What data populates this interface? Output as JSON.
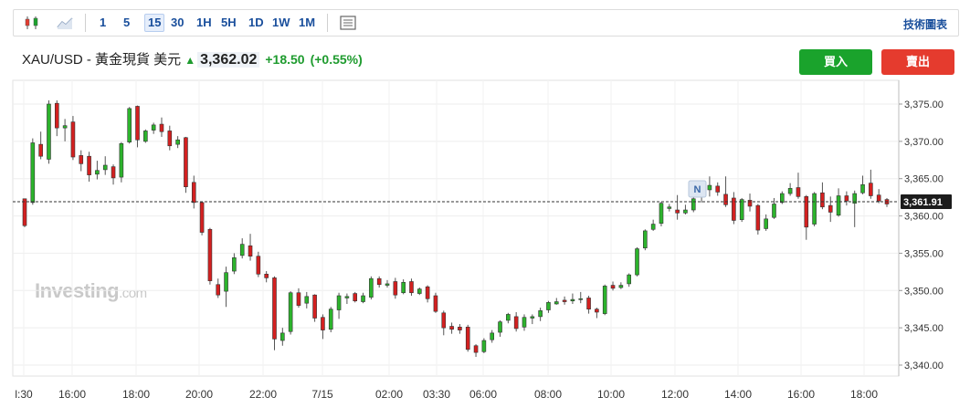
{
  "toolbar": {
    "intervals": [
      "1",
      "5",
      "15",
      "30",
      "1H",
      "5H",
      "1D",
      "1W",
      "1M"
    ],
    "active_interval": "15",
    "right_label": "技術圖表"
  },
  "quote": {
    "name": "XAU/USD - 黃金現貨 美元",
    "direction_icon": "up-arrow-icon",
    "price": "3,362.02",
    "change": "+18.50",
    "change_pct": "(+0.55%)",
    "color_up": "#1e9b2e"
  },
  "buttons": {
    "buy": "買入",
    "sell": "賣出",
    "buy_color": "#1aa32c",
    "sell_color": "#e53b2e"
  },
  "watermark": {
    "brand": "Investing",
    "suffix": ".com"
  },
  "chart_data": {
    "type": "candlestick",
    "x_tick_labels": [
      "l:30",
      "16:00",
      "18:00",
      "20:00",
      "22:00",
      "7/15",
      "02:00",
      "03:30",
      "06:00",
      "08:00",
      "10:00",
      "12:00",
      "14:00",
      "16:00",
      "18:00"
    ],
    "y_tick_labels": [
      "3,375.00",
      "3,370.00",
      "3,365.00",
      "3,360.00",
      "3,355.00",
      "3,350.00",
      "3,345.00",
      "3,340.00"
    ],
    "y_ticks": [
      3375,
      3370,
      3365,
      3360,
      3355,
      3350,
      3345,
      3340
    ],
    "ylim": [
      3338.6,
      3378.5
    ],
    "current_price": 3361.91,
    "current_price_label": "3,361.91",
    "marker_label": "N",
    "up_color": "#2cb32c",
    "down_color": "#d32020",
    "candles": [
      [
        3362.3,
        3358.7,
        3361.9,
        3358.5
      ],
      [
        3361.8,
        3369.8,
        3370.4,
        3361.5
      ],
      [
        3369.6,
        3368.0,
        3371.3,
        3367.6
      ],
      [
        3367.6,
        3375.0,
        3375.5,
        3367.0
      ],
      [
        3375.1,
        3371.8,
        3375.5,
        3370.7
      ],
      [
        3371.8,
        3372.1,
        3373.0,
        3370.0
      ],
      [
        3372.6,
        3367.9,
        3373.4,
        3367.5
      ],
      [
        3368.1,
        3367.0,
        3368.8,
        3366.0
      ],
      [
        3368.0,
        3365.5,
        3368.6,
        3364.6
      ],
      [
        3365.6,
        3366.1,
        3367.4,
        3364.9
      ],
      [
        3366.2,
        3366.8,
        3368.0,
        3365.5
      ],
      [
        3366.6,
        3365.1,
        3366.9,
        3364.2
      ],
      [
        3365.2,
        3369.7,
        3369.9,
        3364.5
      ],
      [
        3369.9,
        3374.4,
        3374.6,
        3369.7
      ],
      [
        3374.7,
        3370.2,
        3374.8,
        3369.2
      ],
      [
        3370.0,
        3371.4,
        3371.6,
        3369.8
      ],
      [
        3371.5,
        3372.2,
        3372.5,
        3371.0
      ],
      [
        3372.3,
        3371.3,
        3373.2,
        3370.6
      ],
      [
        3371.4,
        3369.4,
        3372.1,
        3368.8
      ],
      [
        3369.6,
        3370.2,
        3370.7,
        3369.1
      ],
      [
        3370.5,
        3363.9,
        3370.6,
        3363.1
      ],
      [
        3364.5,
        3361.8,
        3365.4,
        3361.0
      ],
      [
        3361.8,
        3357.8,
        3361.8,
        3357.4
      ],
      [
        3358.2,
        3351.3,
        3358.4,
        3350.8
      ],
      [
        3350.8,
        3349.4,
        3351.6,
        3349.0
      ],
      [
        3349.9,
        3352.4,
        3353.2,
        3347.8
      ],
      [
        3352.6,
        3354.4,
        3355.0,
        3352.2
      ],
      [
        3354.7,
        3356.2,
        3357.0,
        3354.3
      ],
      [
        3356.0,
        3354.6,
        3357.6,
        3354.0
      ],
      [
        3354.6,
        3352.2,
        3355.2,
        3351.8
      ],
      [
        3352.2,
        3351.7,
        3352.6,
        3351.1
      ],
      [
        3351.7,
        3343.5,
        3351.9,
        3342.0
      ],
      [
        3343.3,
        3344.3,
        3345.0,
        3342.6
      ],
      [
        3344.5,
        3349.7,
        3349.9,
        3344.1
      ],
      [
        3349.7,
        3348.0,
        3350.3,
        3347.7
      ],
      [
        3348.3,
        3349.2,
        3349.8,
        3347.6
      ],
      [
        3349.4,
        3346.3,
        3349.5,
        3345.8
      ],
      [
        3346.4,
        3344.7,
        3346.8,
        3343.5
      ],
      [
        3344.8,
        3347.5,
        3347.8,
        3344.4
      ],
      [
        3347.4,
        3349.3,
        3349.7,
        3346.2
      ],
      [
        3349.0,
        3349.2,
        3349.6,
        3348.2
      ],
      [
        3349.6,
        3348.6,
        3349.8,
        3348.4
      ],
      [
        3348.5,
        3349.3,
        3349.7,
        3348.3
      ],
      [
        3349.1,
        3351.6,
        3351.9,
        3348.8
      ],
      [
        3351.6,
        3350.8,
        3351.9,
        3350.4
      ],
      [
        3350.7,
        3350.9,
        3351.4,
        3350.4
      ],
      [
        3351.2,
        3349.4,
        3351.7,
        3348.9
      ],
      [
        3349.7,
        3351.1,
        3351.5,
        3349.5
      ],
      [
        3351.2,
        3349.7,
        3351.6,
        3349.3
      ],
      [
        3349.6,
        3350.2,
        3350.4,
        3349.4
      ],
      [
        3350.5,
        3348.9,
        3350.7,
        3348.4
      ],
      [
        3349.3,
        3347.2,
        3349.7,
        3347.0
      ],
      [
        3347.0,
        3345.0,
        3347.3,
        3344.0
      ],
      [
        3345.2,
        3344.8,
        3345.7,
        3344.2
      ],
      [
        3345.1,
        3344.7,
        3345.5,
        3344.2
      ],
      [
        3345.1,
        3342.1,
        3345.4,
        3341.8
      ],
      [
        3342.6,
        3341.7,
        3342.8,
        3341.1
      ],
      [
        3341.8,
        3343.3,
        3343.6,
        3341.6
      ],
      [
        3343.4,
        3344.3,
        3344.7,
        3343.0
      ],
      [
        3344.4,
        3345.8,
        3346.0,
        3343.8
      ],
      [
        3346.0,
        3346.8,
        3347.0,
        3345.6
      ],
      [
        3346.5,
        3344.9,
        3347.1,
        3344.5
      ],
      [
        3345.1,
        3346.4,
        3346.8,
        3344.6
      ],
      [
        3346.3,
        3346.5,
        3346.8,
        3345.5
      ],
      [
        3346.5,
        3347.3,
        3347.7,
        3345.9
      ],
      [
        3347.4,
        3348.4,
        3348.6,
        3347.0
      ],
      [
        3348.2,
        3348.5,
        3349.0,
        3348.1
      ],
      [
        3348.7,
        3348.5,
        3349.2,
        3348.1
      ],
      [
        3348.6,
        3348.8,
        3349.6,
        3348.2
      ],
      [
        3348.8,
        3348.9,
        3349.8,
        3348.3
      ],
      [
        3349.0,
        3347.5,
        3349.3,
        3346.9
      ],
      [
        3347.5,
        3347.1,
        3347.7,
        3346.3
      ],
      [
        3346.9,
        3350.6,
        3350.8,
        3346.7
      ],
      [
        3350.7,
        3350.3,
        3351.2,
        3350.0
      ],
      [
        3350.4,
        3350.7,
        3351.1,
        3350.2
      ],
      [
        3350.9,
        3352.1,
        3352.3,
        3350.5
      ],
      [
        3352.1,
        3355.6,
        3355.8,
        3351.9
      ],
      [
        3355.7,
        3358.0,
        3358.2,
        3355.4
      ],
      [
        3358.2,
        3358.9,
        3359.5,
        3358.0
      ],
      [
        3359.0,
        3361.7,
        3361.9,
        3358.6
      ],
      [
        3361.0,
        3361.2,
        3361.6,
        3360.6
      ],
      [
        3360.8,
        3360.4,
        3362.8,
        3359.5
      ],
      [
        3360.4,
        3360.8,
        3361.5,
        3360.2
      ],
      [
        3360.8,
        3362.3,
        3363.0,
        3360.5
      ],
      [
        3362.5,
        3363.5,
        3363.8,
        3361.8
      ],
      [
        3363.5,
        3364.1,
        3365.3,
        3362.6
      ],
      [
        3364.0,
        3363.2,
        3364.5,
        3362.7
      ],
      [
        3362.9,
        3361.5,
        3365.3,
        3361.2
      ],
      [
        3362.4,
        3359.4,
        3363.2,
        3358.9
      ],
      [
        3359.5,
        3362.2,
        3362.4,
        3359.2
      ],
      [
        3362.1,
        3361.3,
        3363.0,
        3360.6
      ],
      [
        3361.4,
        3358.1,
        3361.6,
        3357.5
      ],
      [
        3358.3,
        3359.6,
        3360.2,
        3358.0
      ],
      [
        3359.8,
        3361.6,
        3362.4,
        3359.6
      ],
      [
        3361.8,
        3363.0,
        3363.3,
        3361.6
      ],
      [
        3363.0,
        3363.7,
        3364.4,
        3362.7
      ],
      [
        3363.8,
        3362.6,
        3365.8,
        3362.3
      ],
      [
        3362.6,
        3358.5,
        3362.8,
        3356.8
      ],
      [
        3358.9,
        3363.0,
        3363.2,
        3358.6
      ],
      [
        3363.1,
        3361.2,
        3364.5,
        3360.9
      ],
      [
        3361.4,
        3360.5,
        3362.6,
        3359.2
      ],
      [
        3360.1,
        3362.7,
        3363.7,
        3359.9
      ],
      [
        3362.7,
        3362.0,
        3363.3,
        3361.4
      ],
      [
        3361.7,
        3363.0,
        3363.4,
        3358.5
      ],
      [
        3363.1,
        3364.2,
        3365.4,
        3362.9
      ],
      [
        3364.4,
        3362.7,
        3366.2,
        3362.3
      ],
      [
        3362.8,
        3362.0,
        3363.6,
        3361.7
      ],
      [
        3362.2,
        3361.6,
        3362.4,
        3361.2
      ]
    ]
  }
}
